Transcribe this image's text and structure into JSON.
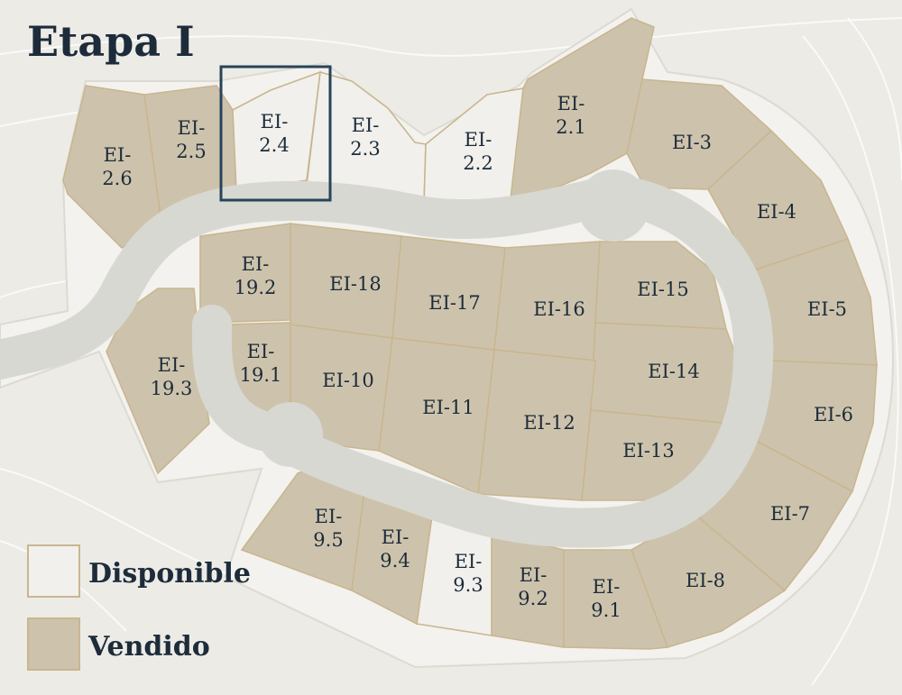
{
  "title": "Etapa I",
  "colors": {
    "background": "#ecebe6",
    "disponible": "#f1f0ec",
    "vendido": "#cdc3ac",
    "lot_border": "#c9b690",
    "road": "#d8d8d2",
    "text": "#1d2b3a",
    "highlight": "#27445a"
  },
  "legend": [
    {
      "status": "disponible",
      "label": "Disponible"
    },
    {
      "status": "vendido",
      "label": "Vendido"
    }
  ],
  "selected_lot": "EI-2.4",
  "lots": [
    {
      "id": "EI-2.6",
      "lines": [
        "EI-",
        "2.6"
      ],
      "status": "vendido"
    },
    {
      "id": "EI-2.5",
      "lines": [
        "EI-",
        "2.5"
      ],
      "status": "vendido"
    },
    {
      "id": "EI-2.4",
      "lines": [
        "EI-",
        "2.4"
      ],
      "status": "disponible"
    },
    {
      "id": "EI-2.3",
      "lines": [
        "EI-",
        "2.3"
      ],
      "status": "disponible"
    },
    {
      "id": "EI-2.2",
      "lines": [
        "EI-",
        "2.2"
      ],
      "status": "disponible"
    },
    {
      "id": "EI-2.1",
      "lines": [
        "EI-",
        "2.1"
      ],
      "status": "vendido"
    },
    {
      "id": "EI-3",
      "lines": [
        "EI-3"
      ],
      "status": "vendido"
    },
    {
      "id": "EI-4",
      "lines": [
        "EI-4"
      ],
      "status": "vendido"
    },
    {
      "id": "EI-5",
      "lines": [
        "EI-5"
      ],
      "status": "vendido"
    },
    {
      "id": "EI-6",
      "lines": [
        "EI-6"
      ],
      "status": "vendido"
    },
    {
      "id": "EI-7",
      "lines": [
        "EI-7"
      ],
      "status": "vendido"
    },
    {
      "id": "EI-8",
      "lines": [
        "EI-8"
      ],
      "status": "vendido"
    },
    {
      "id": "EI-9.1",
      "lines": [
        "EI-",
        "9.1"
      ],
      "status": "vendido"
    },
    {
      "id": "EI-9.2",
      "lines": [
        "EI-",
        "9.2"
      ],
      "status": "vendido"
    },
    {
      "id": "EI-9.3",
      "lines": [
        "EI-",
        "9.3"
      ],
      "status": "disponible"
    },
    {
      "id": "EI-9.4",
      "lines": [
        "EI-",
        "9.4"
      ],
      "status": "vendido"
    },
    {
      "id": "EI-9.5",
      "lines": [
        "EI-",
        "9.5"
      ],
      "status": "vendido"
    },
    {
      "id": "EI-19.3",
      "lines": [
        "EI-",
        "19.3"
      ],
      "status": "vendido"
    },
    {
      "id": "EI-19.2",
      "lines": [
        "EI-",
        "19.2"
      ],
      "status": "vendido"
    },
    {
      "id": "EI-19.1",
      "lines": [
        "EI-",
        "19.1"
      ],
      "status": "vendido"
    },
    {
      "id": "EI-18",
      "lines": [
        "EI-18"
      ],
      "status": "vendido"
    },
    {
      "id": "EI-17",
      "lines": [
        "EI-17"
      ],
      "status": "vendido"
    },
    {
      "id": "EI-16",
      "lines": [
        "EI-16"
      ],
      "status": "vendido"
    },
    {
      "id": "EI-15",
      "lines": [
        "EI-15"
      ],
      "status": "vendido"
    },
    {
      "id": "EI-14",
      "lines": [
        "EI-14"
      ],
      "status": "vendido"
    },
    {
      "id": "EI-13",
      "lines": [
        "EI-13"
      ],
      "status": "vendido"
    },
    {
      "id": "EI-12",
      "lines": [
        "EI-12"
      ],
      "status": "vendido"
    },
    {
      "id": "EI-11",
      "lines": [
        "EI-11"
      ],
      "status": "vendido"
    },
    {
      "id": "EI-10",
      "lines": [
        "EI-10"
      ],
      "status": "vendido"
    }
  ]
}
